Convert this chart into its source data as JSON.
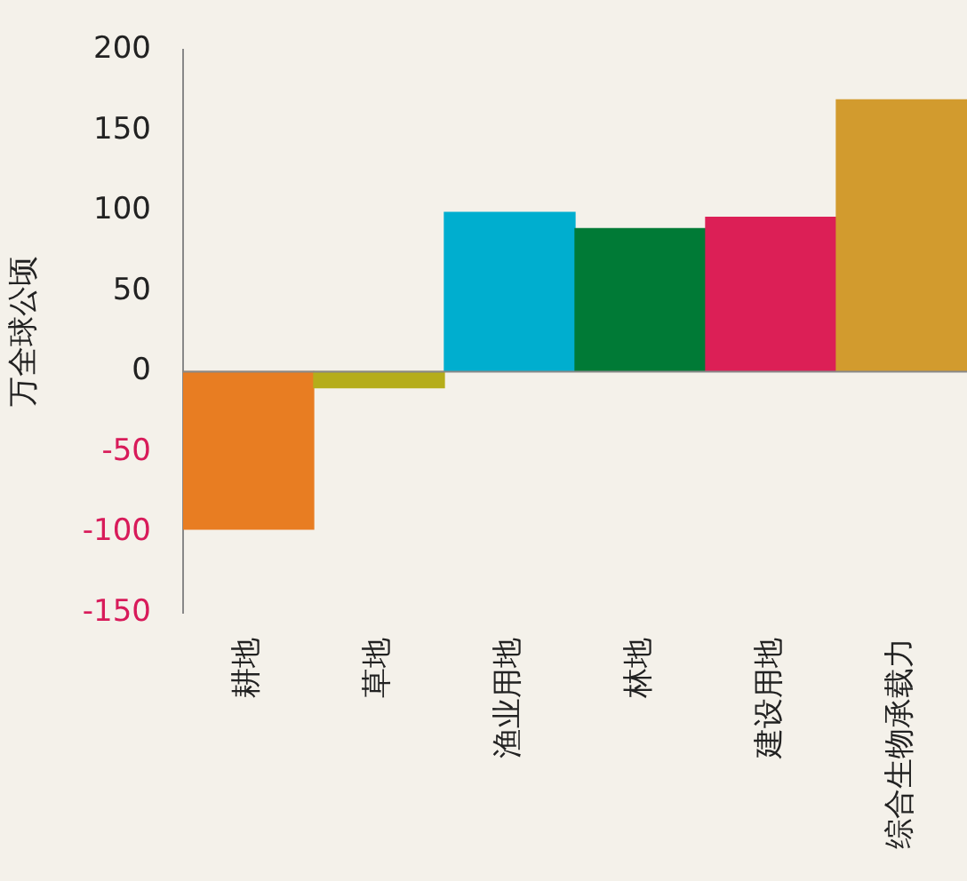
{
  "chart_data": {
    "type": "bar",
    "ylabel": "万全球公顷",
    "categories": [
      "耕地",
      "草地",
      "渔业用地",
      "林地",
      "建设用地",
      "综合生物承载力"
    ],
    "values": [
      -98,
      -10,
      99,
      89,
      96,
      169
    ],
    "colors": [
      "#e87d22",
      "#b5ad1a",
      "#00aecf",
      "#007a36",
      "#dc1f56",
      "#d29b2e"
    ],
    "ref_lines": [
      {
        "axis": "y",
        "value": 0,
        "color": "#888888"
      }
    ],
    "ylim": [
      -150,
      200
    ],
    "yticks": [
      -150,
      -100,
      -50,
      0,
      50,
      100,
      150,
      200
    ],
    "grid": false,
    "legend": false
  }
}
